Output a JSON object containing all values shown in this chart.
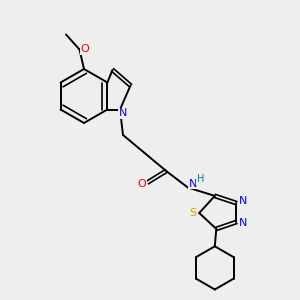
{
  "background_color": "#eeeeee",
  "bond_color": "#000000",
  "atom_colors": {
    "N": "#0000ff",
    "O": "#ff0000",
    "S": "#ccaa00",
    "H": "#008080",
    "C": "#000000"
  },
  "bond_lw": 1.4,
  "dbl_lw": 1.2,
  "dbl_off": 0.055,
  "font_size": 7.5
}
